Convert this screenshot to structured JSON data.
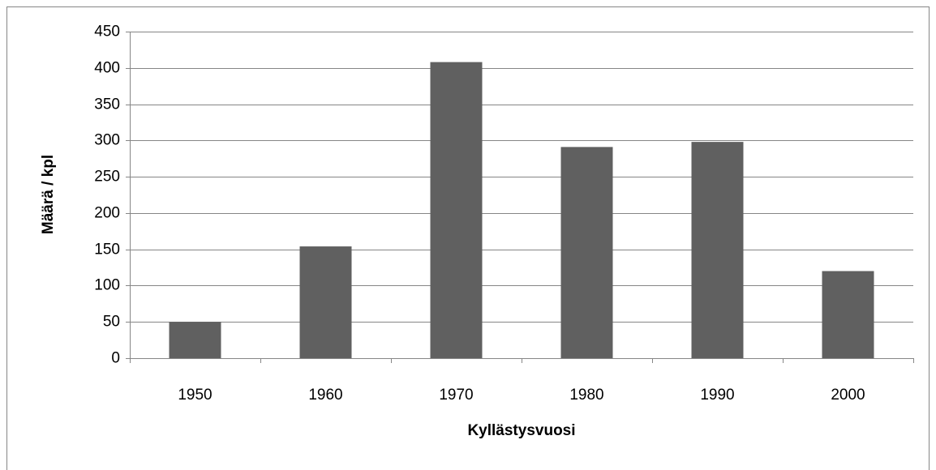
{
  "chart_data": {
    "type": "bar",
    "x_label": "Kyllästysvuosi",
    "y_label": "Määrä / kpl",
    "categories": [
      "1950",
      "1960",
      "1970",
      "1980",
      "1990",
      "2000"
    ],
    "values": [
      50,
      154,
      408,
      291,
      298,
      120
    ],
    "color": "#606060",
    "ylim": [
      0,
      450
    ],
    "yticks": [
      0,
      50,
      100,
      150,
      200,
      250,
      300,
      350,
      400,
      450
    ],
    "grid": true
  }
}
